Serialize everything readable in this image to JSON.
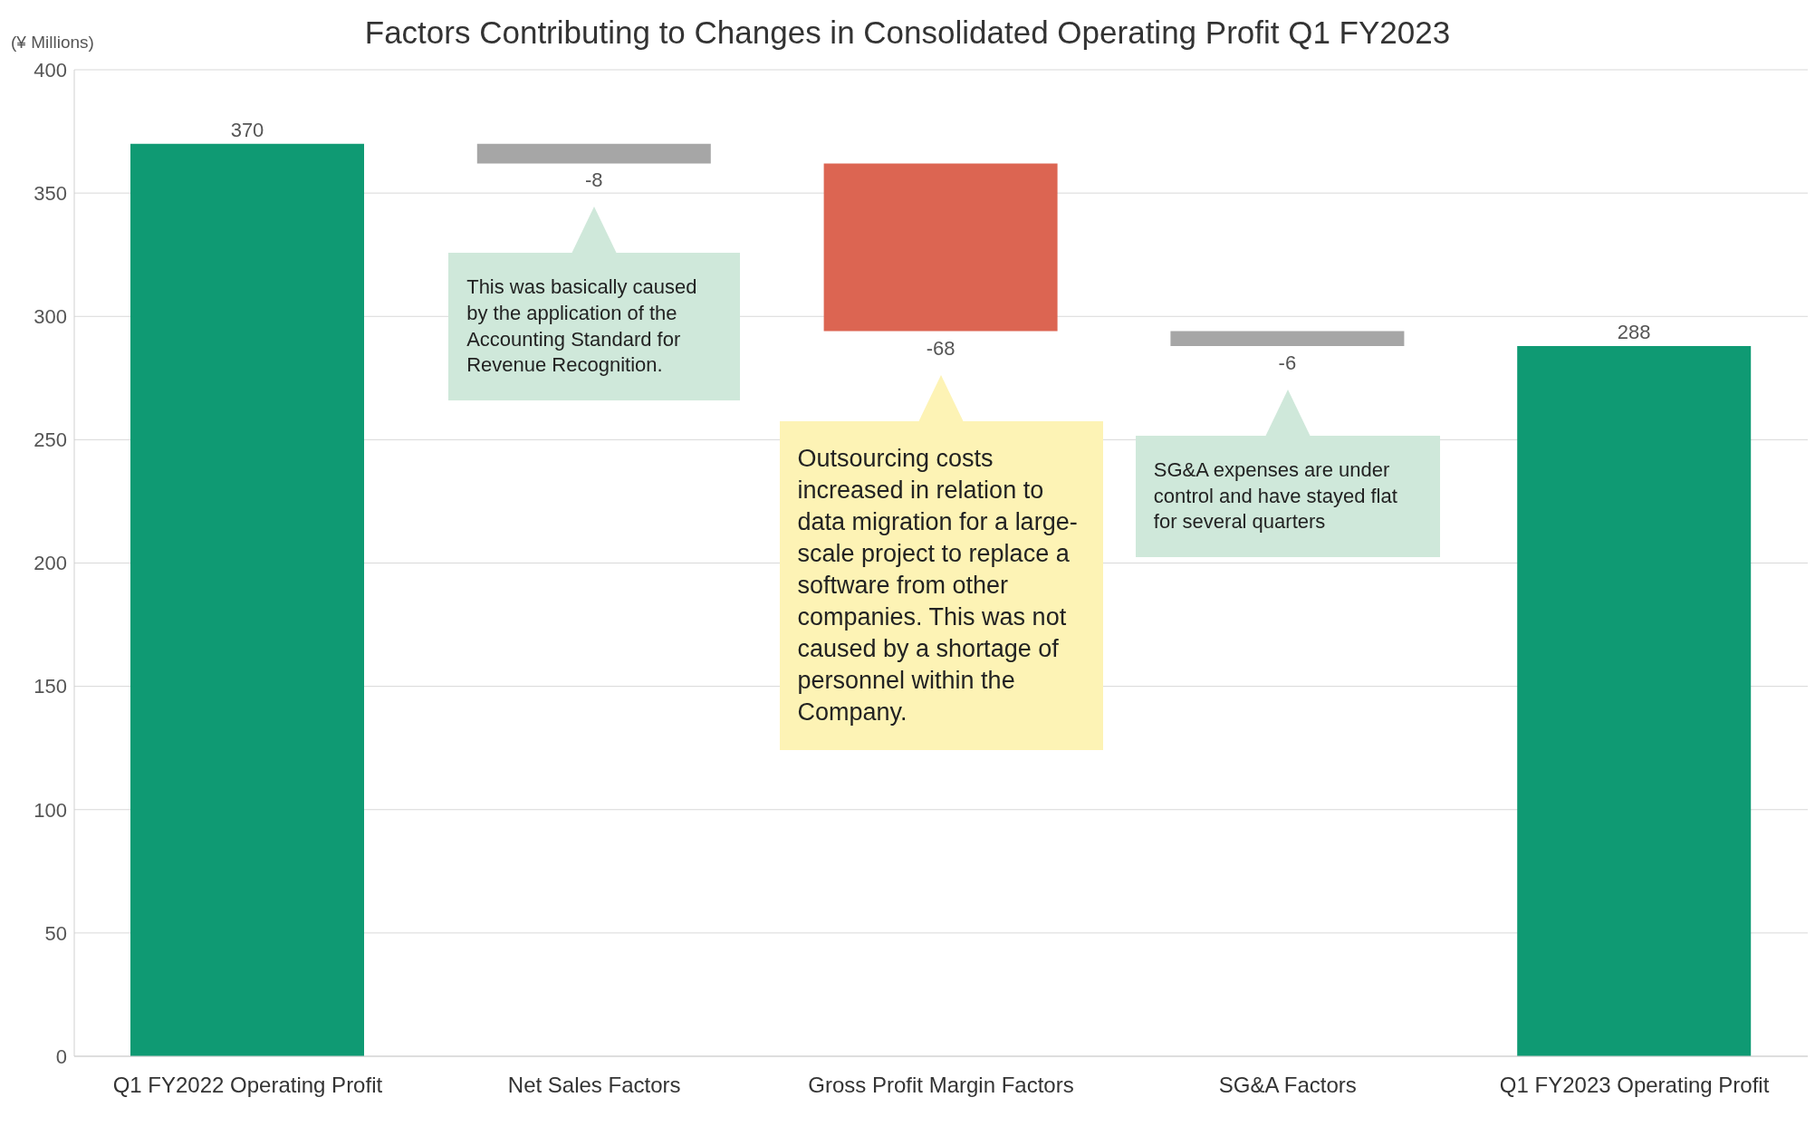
{
  "chart_data": {
    "type": "bar",
    "title": "Factors Contributing to Changes in Consolidated Operating Profit Q1 FY2023",
    "ylabel": "(¥ Millions)",
    "categories": [
      "Q1 FY2022 Operating Profit",
      "Net Sales Factors",
      "Gross Profit Margin Factors",
      "SG&A Factors",
      "Q1 FY2023 Operating Profit"
    ],
    "values": [
      370,
      -8,
      -68,
      -6,
      288
    ],
    "base": [
      0,
      370,
      362,
      294,
      0
    ],
    "colors": [
      "#0f9a73",
      "#a6a6a6",
      "#dc6552",
      "#a6a6a6",
      "#0f9a73"
    ],
    "data_labels": true,
    "ylim": [
      0,
      400
    ],
    "yticks": [
      0,
      50,
      100,
      150,
      200,
      250,
      300,
      350,
      400
    ],
    "grid": "y",
    "annotations": [
      "This was basically caused by the application of  the Accounting Standard for Revenue Recognition.",
      "Outsourcing costs increased in relation to data migration for a large-scale project to replace a software from other companies. This was not caused by a shortage of personnel within the Company.",
      "SG&A expenses are under control and have stayed flat for several quarters"
    ]
  }
}
